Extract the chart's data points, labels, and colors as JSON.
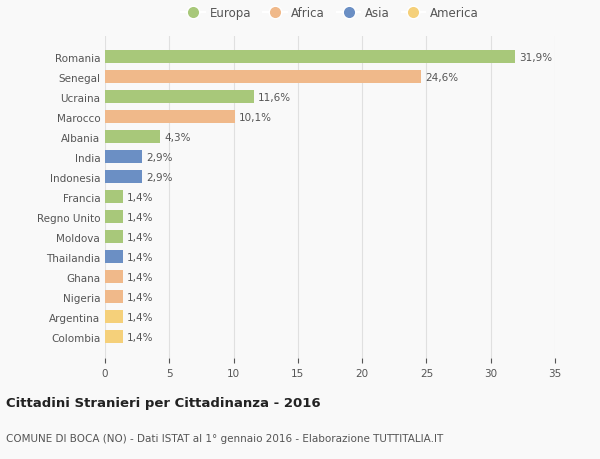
{
  "categories": [
    "Romania",
    "Senegal",
    "Ucraina",
    "Marocco",
    "Albania",
    "India",
    "Indonesia",
    "Francia",
    "Regno Unito",
    "Moldova",
    "Thailandia",
    "Ghana",
    "Nigeria",
    "Argentina",
    "Colombia"
  ],
  "values": [
    31.9,
    24.6,
    11.6,
    10.1,
    4.3,
    2.9,
    2.9,
    1.4,
    1.4,
    1.4,
    1.4,
    1.4,
    1.4,
    1.4,
    1.4
  ],
  "labels": [
    "31,9%",
    "24,6%",
    "11,6%",
    "10,1%",
    "4,3%",
    "2,9%",
    "2,9%",
    "1,4%",
    "1,4%",
    "1,4%",
    "1,4%",
    "1,4%",
    "1,4%",
    "1,4%",
    "1,4%"
  ],
  "colors": [
    "#a8c87a",
    "#f0b98a",
    "#a8c87a",
    "#f0b98a",
    "#a8c87a",
    "#6b8fc4",
    "#6b8fc4",
    "#a8c87a",
    "#a8c87a",
    "#a8c87a",
    "#6b8fc4",
    "#f0b98a",
    "#f0b98a",
    "#f5d07a",
    "#f5d07a"
  ],
  "continent_colors": {
    "Europa": "#a8c87a",
    "Africa": "#f0b98a",
    "Asia": "#6b8fc4",
    "America": "#f5d07a"
  },
  "xlim": [
    0,
    35
  ],
  "xticks": [
    0,
    5,
    10,
    15,
    20,
    25,
    30,
    35
  ],
  "title_bold": "Cittadini Stranieri per Cittadinanza - 2016",
  "subtitle": "COMUNE DI BOCA (NO) - Dati ISTAT al 1° gennaio 2016 - Elaborazione TUTTITALIA.IT",
  "background_color": "#f9f9f9",
  "grid_color": "#e0e0e0",
  "text_color": "#555555",
  "label_fontsize": 7.5,
  "tick_fontsize": 7.5,
  "title_fontsize": 9.5,
  "subtitle_fontsize": 7.5
}
